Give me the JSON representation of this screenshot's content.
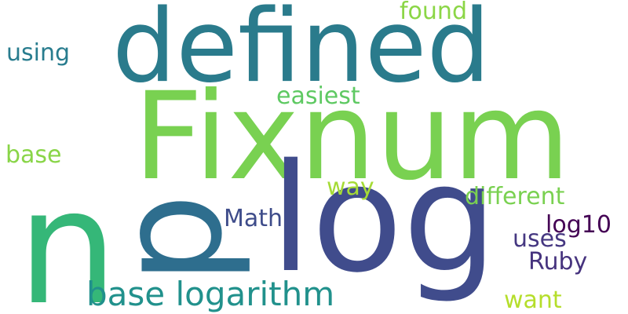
{
  "words": [
    {
      "text": "defined",
      "color": "#2a7b8c"
    },
    {
      "text": "Fixnum",
      "color": "#79d151"
    },
    {
      "text": "p",
      "color": "#2e6e8e"
    },
    {
      "text": "n",
      "color": "#35b778"
    },
    {
      "text": "log",
      "color": "#404c8c"
    },
    {
      "text": "base logarithm",
      "color": "#21918c"
    },
    {
      "text": "found",
      "color": "#8bd646"
    },
    {
      "text": "using",
      "color": "#287c8e"
    },
    {
      "text": "easiest",
      "color": "#5ec962"
    },
    {
      "text": "base",
      "color": "#89d548"
    },
    {
      "text": "way",
      "color": "#a5db36"
    },
    {
      "text": "different",
      "color": "#7ad151"
    },
    {
      "text": "Math",
      "color": "#3e4c8a"
    },
    {
      "text": "log10",
      "color": "#440154"
    },
    {
      "text": "uses",
      "color": "#453781"
    },
    {
      "text": "Ruby",
      "color": "#46337e"
    },
    {
      "text": "want",
      "color": "#b5de2b"
    }
  ]
}
